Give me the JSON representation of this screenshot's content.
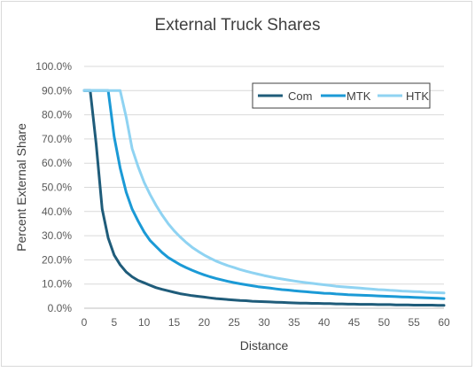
{
  "chart_data": {
    "type": "line",
    "title": "External Truck Shares",
    "xlabel": "Distance",
    "ylabel": "Percent External Share",
    "xlim": [
      0,
      60
    ],
    "ylim": [
      0,
      1
    ],
    "x_ticks": [
      "0",
      "5",
      "10",
      "15",
      "20",
      "25",
      "30",
      "35",
      "40",
      "45",
      "50",
      "55",
      "60"
    ],
    "y_ticks": [
      "0.0%",
      "10.0%",
      "20.0%",
      "30.0%",
      "40.0%",
      "50.0%",
      "60.0%",
      "70.0%",
      "80.0%",
      "90.0%",
      "100.0%"
    ],
    "grid": "horizontal",
    "legend_position": "top-right",
    "x": [
      0,
      1,
      2,
      3,
      4,
      5,
      6,
      7,
      8,
      9,
      10,
      11,
      12,
      13,
      14,
      15,
      16,
      17,
      18,
      19,
      20,
      21,
      22,
      23,
      24,
      25,
      26,
      27,
      28,
      29,
      30,
      31,
      32,
      33,
      34,
      35,
      36,
      37,
      38,
      39,
      40,
      41,
      42,
      43,
      44,
      45,
      46,
      47,
      48,
      49,
      50,
      51,
      52,
      53,
      54,
      55,
      56,
      57,
      58,
      59,
      60
    ],
    "series": [
      {
        "name": "Com",
        "color": "#1f5c7a",
        "values": [
          0.9,
          0.9,
          0.68,
          0.41,
          0.29,
          0.22,
          0.18,
          0.15,
          0.13,
          0.115,
          0.105,
          0.095,
          0.085,
          0.078,
          0.072,
          0.066,
          0.06,
          0.056,
          0.052,
          0.049,
          0.046,
          0.043,
          0.04,
          0.038,
          0.036,
          0.034,
          0.032,
          0.031,
          0.029,
          0.028,
          0.027,
          0.026,
          0.025,
          0.024,
          0.023,
          0.022,
          0.021,
          0.021,
          0.02,
          0.02,
          0.019,
          0.019,
          0.018,
          0.018,
          0.017,
          0.017,
          0.016,
          0.016,
          0.016,
          0.015,
          0.015,
          0.015,
          0.014,
          0.014,
          0.014,
          0.013,
          0.013,
          0.013,
          0.013,
          0.012,
          0.012
        ]
      },
      {
        "name": "MTK",
        "color": "#1b9ad6",
        "values": [
          0.9,
          0.9,
          0.9,
          0.9,
          0.9,
          0.71,
          0.58,
          0.48,
          0.41,
          0.36,
          0.315,
          0.28,
          0.255,
          0.23,
          0.21,
          0.195,
          0.18,
          0.168,
          0.157,
          0.147,
          0.138,
          0.13,
          0.123,
          0.117,
          0.111,
          0.106,
          0.101,
          0.097,
          0.093,
          0.089,
          0.086,
          0.083,
          0.08,
          0.077,
          0.075,
          0.072,
          0.07,
          0.068,
          0.066,
          0.064,
          0.062,
          0.061,
          0.059,
          0.058,
          0.056,
          0.055,
          0.054,
          0.053,
          0.052,
          0.051,
          0.05,
          0.049,
          0.048,
          0.047,
          0.046,
          0.045,
          0.044,
          0.043,
          0.042,
          0.041,
          0.04
        ]
      },
      {
        "name": "HTK",
        "color": "#8fd3f2",
        "values": [
          0.9,
          0.9,
          0.9,
          0.9,
          0.9,
          0.9,
          0.9,
          0.79,
          0.66,
          0.585,
          0.52,
          0.47,
          0.425,
          0.385,
          0.35,
          0.32,
          0.295,
          0.272,
          0.252,
          0.235,
          0.22,
          0.207,
          0.195,
          0.185,
          0.176,
          0.168,
          0.16,
          0.153,
          0.147,
          0.141,
          0.135,
          0.13,
          0.125,
          0.121,
          0.117,
          0.113,
          0.109,
          0.106,
          0.103,
          0.1,
          0.097,
          0.094,
          0.091,
          0.089,
          0.087,
          0.085,
          0.083,
          0.081,
          0.079,
          0.077,
          0.076,
          0.074,
          0.073,
          0.071,
          0.07,
          0.069,
          0.068,
          0.066,
          0.065,
          0.064,
          0.063
        ]
      }
    ]
  }
}
